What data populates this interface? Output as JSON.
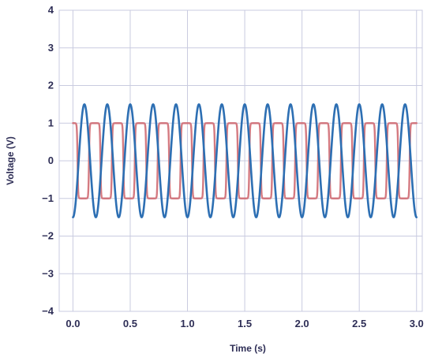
{
  "chart_data": {
    "type": "line",
    "title": "",
    "xlabel": "Time (s)",
    "ylabel": "Voltage (V)",
    "xlim": [
      -0.12,
      3.05
    ],
    "ylim": [
      -4,
      4
    ],
    "x_ticks": [
      "0.0",
      "0.5",
      "1.0",
      "1.5",
      "2.0",
      "2.5",
      "3.0"
    ],
    "x_tick_values": [
      0,
      0.5,
      1,
      1.5,
      2,
      2.5,
      3
    ],
    "y_ticks": [
      "−4",
      "−3",
      "−2",
      "−1",
      "0",
      "1",
      "2",
      "3",
      "4"
    ],
    "y_tick_values": [
      -4,
      -3,
      -2,
      -1,
      0,
      1,
      2,
      3,
      4
    ],
    "x_grid_values": [
      0,
      0.5,
      1,
      1.5,
      2,
      2.5,
      3
    ],
    "grid": true,
    "legend": "none",
    "series": [
      {
        "kind": "square-like wave",
        "color": "#cf6b73",
        "amplitude": 1.0,
        "frequency_hz": 5.0,
        "phase_rad": 1.88,
        "x_start": 0.0,
        "x_end": 3.0
      },
      {
        "kind": "sine wave",
        "color": "#2d6fb3",
        "amplitude": 1.5,
        "frequency_hz": 5.0,
        "phase_rad": -1.5708,
        "x_start": 0.0,
        "x_end": 3.0
      }
    ]
  }
}
